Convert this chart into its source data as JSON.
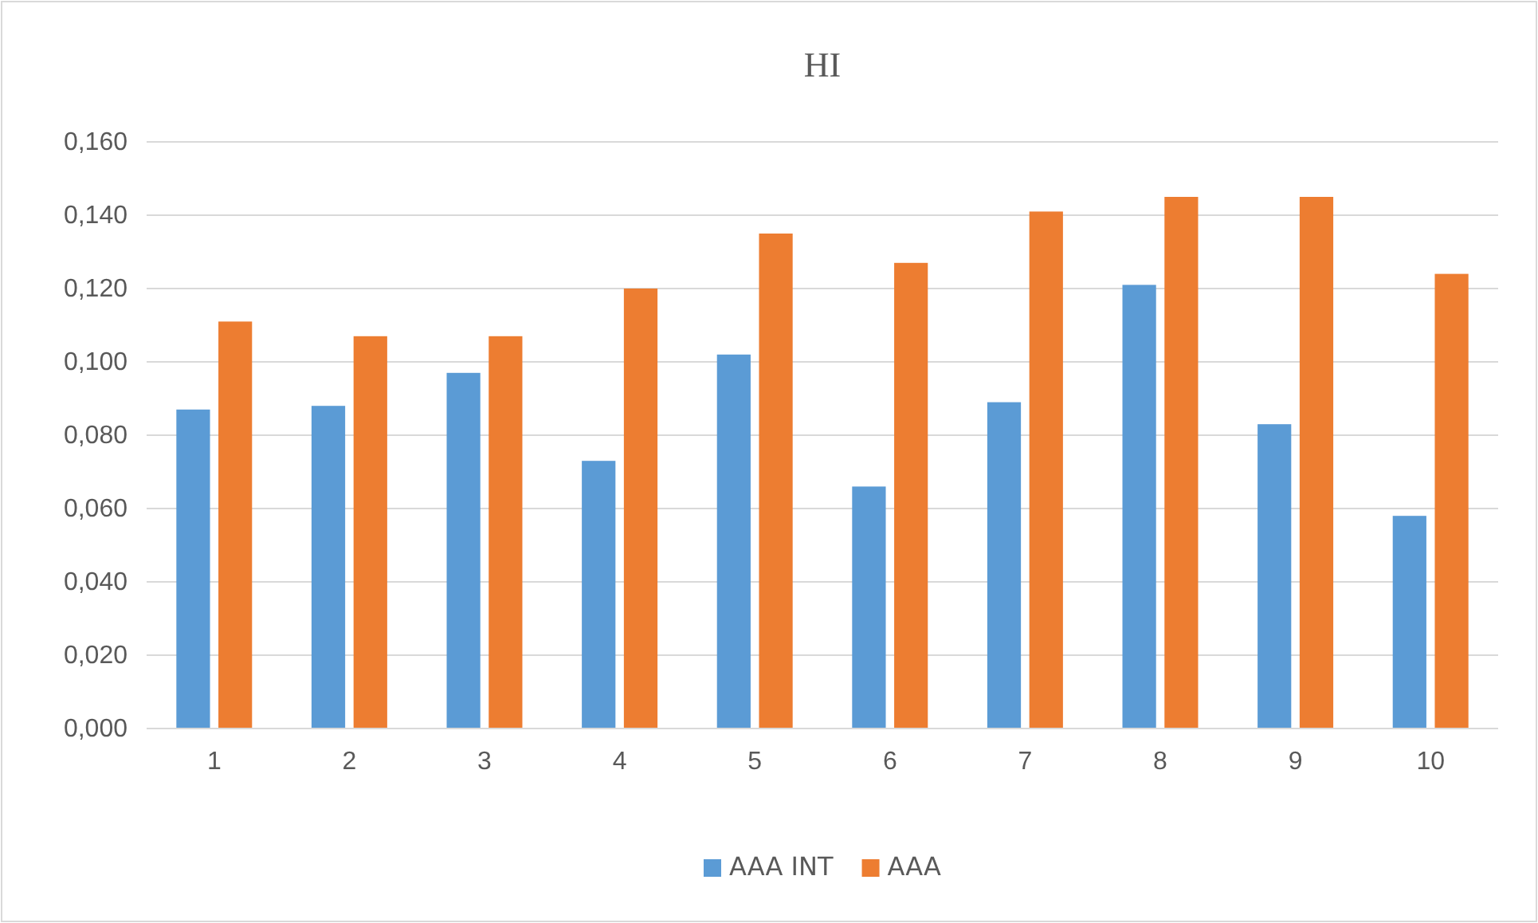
{
  "chart_data": {
    "type": "bar",
    "title": "HI",
    "categories": [
      "1",
      "2",
      "3",
      "4",
      "5",
      "6",
      "7",
      "8",
      "9",
      "10"
    ],
    "series": [
      {
        "name": "AAA INT",
        "color": "#5b9bd5",
        "values": [
          0.087,
          0.088,
          0.097,
          0.073,
          0.102,
          0.066,
          0.089,
          0.121,
          0.083,
          0.058
        ]
      },
      {
        "name": "AAA",
        "color": "#ed7d31",
        "values": [
          0.111,
          0.107,
          0.107,
          0.12,
          0.135,
          0.127,
          0.141,
          0.145,
          0.145,
          0.124
        ]
      }
    ],
    "ylim": [
      0,
      0.16
    ],
    "yticks": [
      {
        "value": 0,
        "label": "0,000"
      },
      {
        "value": 0.02,
        "label": "0,020"
      },
      {
        "value": 0.04,
        "label": "0,040"
      },
      {
        "value": 0.06,
        "label": "0,060"
      },
      {
        "value": 0.08,
        "label": "0,080"
      },
      {
        "value": 0.1,
        "label": "0,100"
      },
      {
        "value": 0.12,
        "label": "0,120"
      },
      {
        "value": 0.14,
        "label": "0,140"
      },
      {
        "value": 0.16,
        "label": "0,160"
      }
    ],
    "grid": "y",
    "legend": "bottom"
  }
}
